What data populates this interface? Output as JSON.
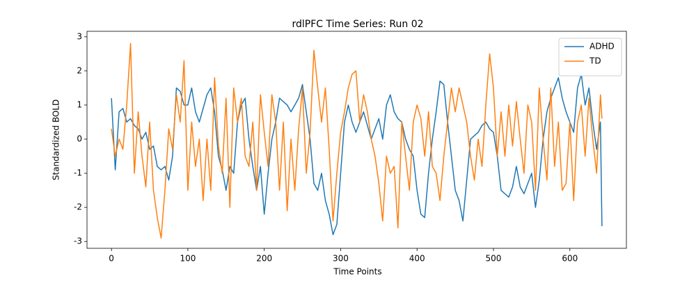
{
  "chart_data": {
    "type": "line",
    "title": "rdlPFC Time Series: Run 02",
    "x_label": "Time Points",
    "y_label": "Standardized BOLD",
    "x": [
      0,
      5,
      10,
      15,
      20,
      25,
      30,
      35,
      40,
      45,
      50,
      55,
      60,
      65,
      70,
      75,
      80,
      85,
      90,
      95,
      100,
      105,
      110,
      115,
      120,
      125,
      130,
      135,
      140,
      145,
      150,
      155,
      160,
      165,
      170,
      175,
      180,
      185,
      190,
      195,
      200,
      205,
      210,
      215,
      220,
      225,
      230,
      235,
      240,
      245,
      250,
      255,
      260,
      265,
      270,
      275,
      280,
      285,
      290,
      295,
      300,
      305,
      310,
      315,
      320,
      325,
      330,
      335,
      340,
      345,
      350,
      355,
      360,
      365,
      370,
      375,
      380,
      385,
      390,
      395,
      400,
      405,
      410,
      415,
      420,
      425,
      430,
      435,
      440,
      445,
      450,
      455,
      460,
      465,
      470,
      475,
      480,
      485,
      490,
      495,
      500,
      505,
      510,
      515,
      520,
      525,
      530,
      535,
      540,
      545,
      550,
      555,
      560,
      565,
      570,
      575,
      580,
      585,
      590,
      595,
      600,
      605,
      610,
      615,
      620,
      625,
      630,
      635,
      640,
      642
    ],
    "series": [
      {
        "name": "ADHD",
        "color": "#1f77b4",
        "values": [
          1.2,
          -0.9,
          0.8,
          0.9,
          0.5,
          0.6,
          0.4,
          0.3,
          0,
          0.2,
          -0.3,
          -0.2,
          -0.8,
          -0.9,
          -0.8,
          -1.2,
          -0.5,
          1.5,
          1.4,
          1,
          1,
          1.5,
          0.8,
          0.5,
          0.9,
          1.3,
          1.5,
          0.8,
          -0.5,
          -0.9,
          -1.5,
          -0.8,
          -1,
          0.5,
          1,
          1.2,
          0,
          -0.8,
          -1.5,
          -0.8,
          -2.2,
          -1,
          0,
          0.5,
          1.2,
          1.1,
          1,
          0.8,
          1,
          1.2,
          1.6,
          0.8,
          0,
          -1.3,
          -1.5,
          -1,
          -1.8,
          -2.2,
          -2.8,
          -2.5,
          -1,
          0.5,
          1,
          0.5,
          0.2,
          0.5,
          0.8,
          0.4,
          0,
          0.3,
          0.6,
          0,
          1,
          1.3,
          0.8,
          0.6,
          0.5,
          0,
          -0.3,
          -0.5,
          -1.5,
          -2.2,
          -2.3,
          -1,
          0,
          0.8,
          1.7,
          1.6,
          0.5,
          -0.5,
          -1.5,
          -1.8,
          -2.4,
          -1.2,
          0,
          0.1,
          0.2,
          0.4,
          0.5,
          0.3,
          0.2,
          -0.5,
          -1.5,
          -1.6,
          -1.7,
          -1.4,
          -0.8,
          -1.4,
          -1.6,
          -1.3,
          -1,
          -2,
          -1.2,
          0,
          0.8,
          1.2,
          1.5,
          1.8,
          1.2,
          0.8,
          0.5,
          0.2,
          1.5,
          1.9,
          1,
          1.5,
          0.5,
          -0.3,
          0.5,
          -2.55
        ]
      },
      {
        "name": "TD",
        "color": "#ff7f0e",
        "values": [
          0.3,
          -0.5,
          0,
          -0.3,
          1,
          2.8,
          -1,
          0.8,
          -0.5,
          -1.4,
          0.5,
          -1.5,
          -2.3,
          -2.9,
          -1.5,
          0.3,
          -0.3,
          1.3,
          0.5,
          2.3,
          -1.5,
          0.5,
          -0.8,
          0,
          -1.8,
          0,
          -1.5,
          1.8,
          -0.2,
          -1,
          1.2,
          -2,
          1.5,
          0.5,
          1.2,
          -0.5,
          -0.8,
          0.5,
          -1.5,
          1.3,
          0.2,
          -0.8,
          1.3,
          0.5,
          -1.5,
          0.5,
          -2.1,
          0,
          -1.5,
          0.3,
          1.5,
          -1,
          0.2,
          2.6,
          1.5,
          0.5,
          1.5,
          -0.3,
          -2.4,
          -1,
          0.2,
          0.8,
          1.5,
          1.9,
          2,
          0.5,
          1.3,
          0.8,
          0,
          -0.5,
          -1.3,
          -2.4,
          -0.5,
          -1,
          -0.8,
          -2.6,
          0.5,
          -0.5,
          -1.5,
          0.5,
          1,
          0.6,
          -0.5,
          0.8,
          -0.8,
          -1,
          -1.8,
          -0.5,
          0.5,
          1.5,
          0.8,
          1.5,
          1,
          0.5,
          -0.5,
          -1.2,
          0,
          -0.8,
          1,
          2.5,
          1.5,
          -0.5,
          0.8,
          -0.5,
          1,
          -0.2,
          1.1,
          0,
          -1,
          1,
          0.5,
          -1.5,
          1.5,
          0,
          -1.2,
          1.5,
          -0.8,
          0.5,
          -1.5,
          -1.3,
          0.5,
          -1.8,
          0.5,
          1,
          -0.5,
          1.2,
          0,
          -1,
          1.3,
          0.6
        ]
      }
    ],
    "xlim": [
      -32,
      674
    ],
    "ylim": [
      -3.2,
      3.16
    ],
    "xticks": [
      0,
      100,
      200,
      300,
      400,
      500,
      600
    ],
    "yticks": [
      -3,
      -2,
      -1,
      0,
      1,
      2,
      3
    ],
    "legend": "upper right"
  }
}
